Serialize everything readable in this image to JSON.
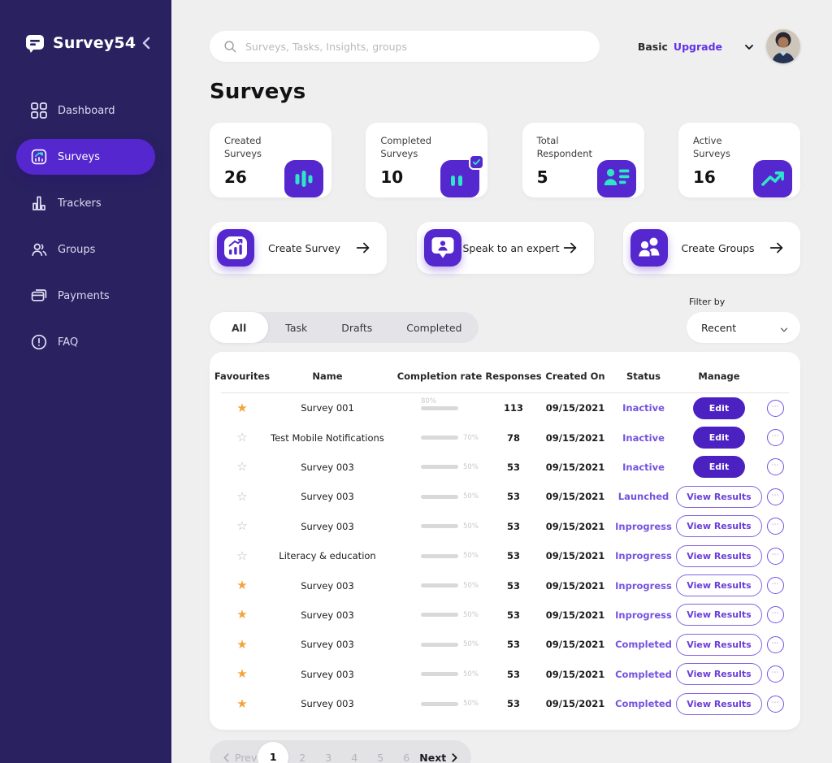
{
  "brand": {
    "name": "Survey54"
  },
  "sidebar": {
    "items": [
      {
        "label": "Dashboard",
        "icon": "dashboard",
        "active": false
      },
      {
        "label": "Surveys",
        "icon": "surveys",
        "active": true
      },
      {
        "label": "Trackers",
        "icon": "trackers",
        "active": false
      },
      {
        "label": "Groups",
        "icon": "groups",
        "active": false
      },
      {
        "label": "Payments",
        "icon": "payments",
        "active": false
      },
      {
        "label": "FAQ",
        "icon": "faq",
        "active": false
      }
    ]
  },
  "topbar": {
    "search_placeholder": "Surveys, Tasks, Insights, groups",
    "plan": "Basic",
    "upgrade": "Upgrade"
  },
  "page_title": "Surveys",
  "stats": [
    {
      "label": "Created Surveys",
      "value": "26",
      "icon": "stat-bars"
    },
    {
      "label": "Completed Surveys",
      "value": "10",
      "icon": "stat-bars-check"
    },
    {
      "label": "Total Respondent",
      "value": "5",
      "icon": "stat-respondent"
    },
    {
      "label": "Active Surveys",
      "value": "16",
      "icon": "stat-trend"
    }
  ],
  "actions": [
    {
      "label": "Create Survey",
      "icon": "action-survey"
    },
    {
      "label": "Speak to an expert",
      "icon": "action-expert"
    },
    {
      "label": "Create Groups",
      "icon": "action-groups"
    }
  ],
  "tabs": [
    {
      "label": "All",
      "active": true
    },
    {
      "label": "Task",
      "active": false
    },
    {
      "label": "Drafts",
      "active": false
    },
    {
      "label": "Completed",
      "active": false
    }
  ],
  "filter": {
    "label": "Filter by",
    "value": "Recent"
  },
  "table": {
    "columns": [
      "Favourites",
      "Name",
      "Completion rate",
      "Responses",
      "Created On",
      "Status",
      "Manage"
    ],
    "rows": [
      {
        "fav": true,
        "name": "Survey 001",
        "completion": 80,
        "completion_label": "80%",
        "label_pos": "above",
        "responses": "113",
        "created": "09/15/2021",
        "status": "Inactive",
        "action": "Edit",
        "action_style": "primary"
      },
      {
        "fav": false,
        "name": "Test Mobile Notifications",
        "completion": 70,
        "completion_label": "70%",
        "label_pos": "right",
        "responses": "78",
        "created": "09/15/2021",
        "status": "Inactive",
        "action": "Edit",
        "action_style": "primary"
      },
      {
        "fav": false,
        "name": "Survey 003",
        "completion": 50,
        "completion_label": "50%",
        "label_pos": "right",
        "responses": "53",
        "created": "09/15/2021",
        "status": "Inactive",
        "action": "Edit",
        "action_style": "primary"
      },
      {
        "fav": false,
        "name": "Survey 003",
        "completion": 50,
        "completion_label": "50%",
        "label_pos": "right",
        "responses": "53",
        "created": "09/15/2021",
        "status": "Launched",
        "action": "View Results",
        "action_style": "outline"
      },
      {
        "fav": false,
        "name": "Survey 003",
        "completion": 50,
        "completion_label": "50%",
        "label_pos": "right",
        "responses": "53",
        "created": "09/15/2021",
        "status": "Inprogress",
        "action": "View Results",
        "action_style": "outline"
      },
      {
        "fav": false,
        "name": "Literacy & education",
        "completion": 50,
        "completion_label": "50%",
        "label_pos": "right",
        "responses": "53",
        "created": "09/15/2021",
        "status": "Inprogress",
        "action": "View Results",
        "action_style": "outline"
      },
      {
        "fav": true,
        "name": "Survey 003",
        "completion": 50,
        "completion_label": "50%",
        "label_pos": "right",
        "responses": "53",
        "created": "09/15/2021",
        "status": "Inprogress",
        "action": "View Results",
        "action_style": "outline"
      },
      {
        "fav": true,
        "name": "Survey 003",
        "completion": 50,
        "completion_label": "50%",
        "label_pos": "right",
        "responses": "53",
        "created": "09/15/2021",
        "status": "Inprogress",
        "action": "View Results",
        "action_style": "outline"
      },
      {
        "fav": true,
        "name": "Survey 003",
        "completion": 50,
        "completion_label": "50%",
        "label_pos": "right",
        "responses": "53",
        "created": "09/15/2021",
        "status": "Completed",
        "action": "View Results",
        "action_style": "outline"
      },
      {
        "fav": true,
        "name": "Survey 003",
        "completion": 50,
        "completion_label": "50%",
        "label_pos": "right",
        "responses": "53",
        "created": "09/15/2021",
        "status": "Completed",
        "action": "View Results",
        "action_style": "outline"
      },
      {
        "fav": true,
        "name": "Survey 003",
        "completion": 50,
        "completion_label": "50%",
        "label_pos": "right",
        "responses": "53",
        "created": "09/15/2021",
        "status": "Completed",
        "action": "View Results",
        "action_style": "outline"
      }
    ]
  },
  "pagination": {
    "prev": "Prev",
    "next": "Next",
    "pages": [
      {
        "label": "1",
        "active": true
      },
      {
        "label": "2",
        "active": false
      },
      {
        "label": "3",
        "active": false
      },
      {
        "label": "4",
        "active": false
      },
      {
        "label": "5",
        "active": false
      },
      {
        "label": "6",
        "active": false
      }
    ]
  },
  "colors": {
    "primary": "#5527cf",
    "teal": "#2ee6c7",
    "star": "#f2a43a",
    "status_text": "#7552e0",
    "sidebar_bg": "#2a2160"
  }
}
